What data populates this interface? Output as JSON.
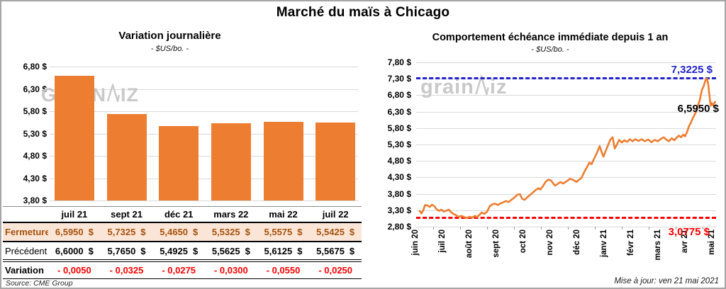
{
  "page": {
    "title": "Marché du maïs à Chicago",
    "source": "Source: CME Group",
    "updated": "Mise à jour: ven 21 mai 2021",
    "watermark_pre": "grain",
    "watermark_post": "iz"
  },
  "colors": {
    "bar": "#ED7D31",
    "line": "#ED7D31",
    "max_line": "#2222C8",
    "min_line": "#FE0000",
    "grid": "#D9D9D9",
    "fermeture_bg": "#FBE5D6",
    "fermeture_text": "#A5530F",
    "variation_text": "#FE0000",
    "watermark": "#C9C9C9"
  },
  "chart_data": [
    {
      "id": "daily-variation",
      "type": "bar",
      "title": "Variation journalière",
      "subtitle": "- $US/bo. -",
      "categories": [
        "juil 21",
        "sept 21",
        "déc 21",
        "mars 22",
        "mai 22",
        "juil 22"
      ],
      "values": [
        6.595,
        5.7325,
        5.465,
        5.5325,
        5.5575,
        5.5425
      ],
      "ylim": [
        3.8,
        6.8
      ],
      "ytick_step": 0.5,
      "ytick_labels": [
        "6,80 $",
        "6,30 $",
        "5,80 $",
        "5,30 $",
        "4,80 $",
        "4,30 $",
        "3,80 $"
      ],
      "grid": true,
      "legend": "none",
      "bar_color": "#ED7D31"
    },
    {
      "id": "front-month-one-year",
      "type": "line",
      "title": "Comportement échéance immédiate depuis 1 an",
      "subtitle": "- $US/bo. -",
      "x_labels": [
        "juin 20",
        "juil 20",
        "août 20",
        "sept 20",
        "oct 20",
        "nov 20",
        "déc 20",
        "janv 21",
        "févr 21",
        "mars 21",
        "avr 21",
        "mai 21"
      ],
      "ylim": [
        2.8,
        7.8
      ],
      "ytick_step": 0.5,
      "ytick_labels": [
        "7,80 $",
        "7,30 $",
        "6,80 $",
        "6,30 $",
        "5,80 $",
        "5,30 $",
        "4,80 $",
        "4,30 $",
        "3,80 $",
        "3,30 $",
        "2,80 $"
      ],
      "grid": true,
      "legend": "none",
      "line_color": "#ED7D31",
      "max_line": {
        "value": 7.3225,
        "label": "7,3225 $",
        "color": "#2222C8"
      },
      "min_line": {
        "value": 3.0775,
        "label": "3,0775 $",
        "color": "#FE0000"
      },
      "last_point_label": {
        "value": 6.595,
        "label": "6,5950 $"
      },
      "series": [
        {
          "name": "échéance immédiate",
          "points": [
            [
              0.0,
              3.28
            ],
            [
              0.06,
              3.2
            ],
            [
              0.12,
              3.28
            ],
            [
              0.2,
              3.46
            ],
            [
              0.3,
              3.44
            ],
            [
              0.38,
              3.4
            ],
            [
              0.45,
              3.47
            ],
            [
              0.55,
              3.42
            ],
            [
              0.62,
              3.33
            ],
            [
              0.72,
              3.28
            ],
            [
              0.8,
              3.32
            ],
            [
              0.9,
              3.26
            ],
            [
              1.0,
              3.29
            ],
            [
              1.08,
              3.32
            ],
            [
              1.15,
              3.25
            ],
            [
              1.25,
              3.19
            ],
            [
              1.35,
              3.15
            ],
            [
              1.45,
              3.1
            ],
            [
              1.55,
              3.13
            ],
            [
              1.65,
              3.09
            ],
            [
              1.75,
              3.07
            ],
            [
              1.85,
              3.1
            ],
            [
              1.95,
              3.08
            ],
            [
              2.05,
              3.13
            ],
            [
              2.12,
              3.09
            ],
            [
              2.22,
              3.16
            ],
            [
              2.3,
              3.23
            ],
            [
              2.4,
              3.19
            ],
            [
              2.5,
              3.26
            ],
            [
              2.6,
              3.42
            ],
            [
              2.7,
              3.48
            ],
            [
              2.8,
              3.5
            ],
            [
              2.9,
              3.46
            ],
            [
              3.0,
              3.51
            ],
            [
              3.1,
              3.54
            ],
            [
              3.2,
              3.58
            ],
            [
              3.3,
              3.55
            ],
            [
              3.42,
              3.63
            ],
            [
              3.52,
              3.69
            ],
            [
              3.62,
              3.77
            ],
            [
              3.72,
              3.79
            ],
            [
              3.8,
              3.65
            ],
            [
              3.9,
              3.62
            ],
            [
              4.0,
              3.7
            ],
            [
              4.1,
              3.77
            ],
            [
              4.2,
              3.84
            ],
            [
              4.3,
              3.91
            ],
            [
              4.4,
              3.97
            ],
            [
              4.48,
              3.93
            ],
            [
              4.58,
              4.04
            ],
            [
              4.68,
              4.17
            ],
            [
              4.78,
              4.23
            ],
            [
              4.88,
              4.2
            ],
            [
              4.95,
              4.12
            ],
            [
              5.02,
              4.05
            ],
            [
              5.12,
              4.1
            ],
            [
              5.22,
              4.16
            ],
            [
              5.32,
              4.11
            ],
            [
              5.45,
              4.18
            ],
            [
              5.58,
              4.26
            ],
            [
              5.7,
              4.22
            ],
            [
              5.82,
              4.16
            ],
            [
              5.92,
              4.23
            ],
            [
              6.0,
              4.28
            ],
            [
              6.1,
              4.45
            ],
            [
              6.2,
              4.6
            ],
            [
              6.3,
              4.75
            ],
            [
              6.38,
              4.7
            ],
            [
              6.48,
              4.88
            ],
            [
              6.58,
              5.05
            ],
            [
              6.68,
              5.25
            ],
            [
              6.74,
              5.1
            ],
            [
              6.82,
              4.93
            ],
            [
              6.9,
              5.1
            ],
            [
              7.0,
              5.3
            ],
            [
              7.08,
              5.45
            ],
            [
              7.16,
              5.52
            ],
            [
              7.24,
              5.18
            ],
            [
              7.32,
              5.3
            ],
            [
              7.4,
              5.44
            ],
            [
              7.5,
              5.36
            ],
            [
              7.6,
              5.43
            ],
            [
              7.7,
              5.38
            ],
            [
              7.8,
              5.46
            ],
            [
              7.9,
              5.4
            ],
            [
              8.0,
              5.46
            ],
            [
              8.12,
              5.41
            ],
            [
              8.24,
              5.46
            ],
            [
              8.36,
              5.4
            ],
            [
              8.48,
              5.45
            ],
            [
              8.6,
              5.37
            ],
            [
              8.72,
              5.44
            ],
            [
              8.84,
              5.4
            ],
            [
              8.95,
              5.47
            ],
            [
              9.05,
              5.52
            ],
            [
              9.15,
              5.45
            ],
            [
              9.25,
              5.4
            ],
            [
              9.35,
              5.49
            ],
            [
              9.45,
              5.43
            ],
            [
              9.55,
              5.52
            ],
            [
              9.62,
              5.57
            ],
            [
              9.7,
              5.52
            ],
            [
              9.78,
              5.6
            ],
            [
              9.85,
              5.55
            ],
            [
              9.92,
              5.68
            ],
            [
              10.0,
              5.87
            ],
            [
              10.06,
              5.95
            ],
            [
              10.13,
              6.09
            ],
            [
              10.2,
              6.2
            ],
            [
              10.26,
              6.3
            ],
            [
              10.33,
              6.5
            ],
            [
              10.39,
              6.63
            ],
            [
              10.47,
              6.95
            ],
            [
              10.55,
              7.1
            ],
            [
              10.61,
              7.27
            ],
            [
              10.66,
              7.31
            ],
            [
              10.71,
              7.13
            ],
            [
              10.76,
              6.73
            ],
            [
              10.8,
              6.48
            ],
            [
              10.84,
              6.56
            ],
            [
              10.89,
              6.48
            ],
            [
              10.95,
              6.59
            ],
            [
              11.0,
              6.59
            ]
          ]
        }
      ]
    }
  ],
  "table": {
    "columns": [
      "juil 21",
      "sept 21",
      "déc 21",
      "mars 22",
      "mai 22",
      "juil 22"
    ],
    "rows": [
      {
        "label": "Fermeture",
        "style": "fermeture",
        "unit": "$",
        "values": [
          "6,5950",
          "5,7325",
          "5,4650",
          "5,5325",
          "5,5575",
          "5,5425"
        ]
      },
      {
        "label": "Précédent",
        "style": "precedent",
        "unit": "$",
        "values": [
          "6,6000",
          "5,7650",
          "5,4925",
          "5,5625",
          "5,6125",
          "5,5675"
        ]
      },
      {
        "label": "Variation",
        "style": "variation",
        "unit": "",
        "values": [
          "- 0,0050",
          "- 0,0325",
          "- 0,0275",
          "- 0,0300",
          "- 0,0550",
          "- 0,0250"
        ]
      }
    ]
  }
}
